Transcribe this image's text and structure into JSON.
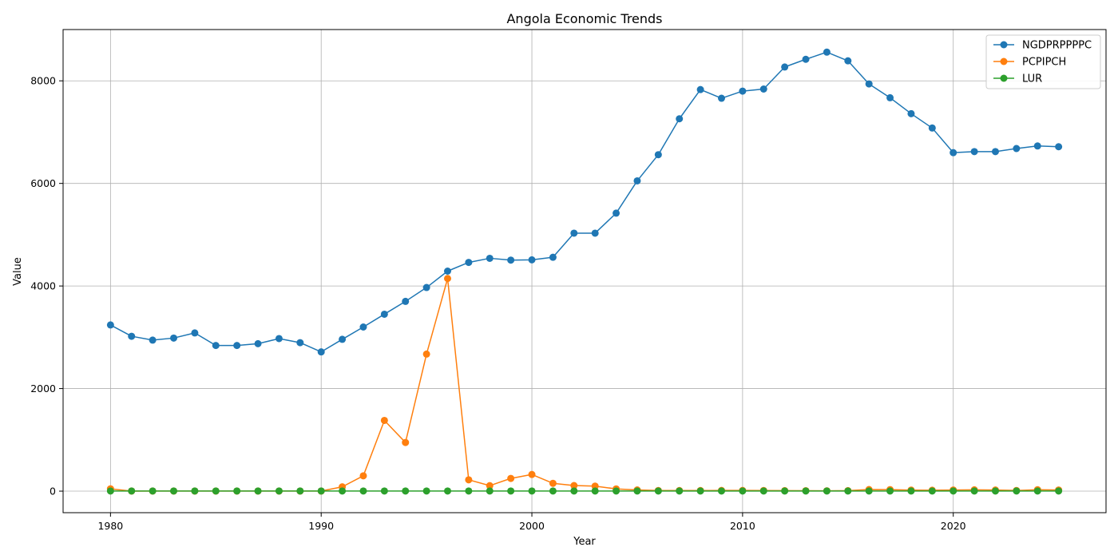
{
  "chart_data": {
    "type": "line",
    "title": "Angola Economic Trends",
    "xlabel": "Year",
    "ylabel": "Value",
    "xlim": [
      1977.75,
      2027.25
    ],
    "ylim": [
      -420,
      9000
    ],
    "xticks": [
      1980,
      1990,
      2000,
      2010,
      2020
    ],
    "yticks": [
      0,
      2000,
      4000,
      6000,
      8000
    ],
    "grid": true,
    "legend_position": "top-right",
    "x": [
      1980,
      1981,
      1982,
      1983,
      1984,
      1985,
      1986,
      1987,
      1988,
      1989,
      1990,
      1991,
      1992,
      1993,
      1994,
      1995,
      1996,
      1997,
      1998,
      1999,
      2000,
      2001,
      2002,
      2003,
      2004,
      2005,
      2006,
      2007,
      2008,
      2009,
      2010,
      2011,
      2012,
      2013,
      2014,
      2015,
      2016,
      2017,
      2018,
      2019,
      2020,
      2021,
      2022,
      2023,
      2024,
      2025
    ],
    "series": [
      {
        "name": "NGDPRPPPPC",
        "color": "#1f77b4",
        "values": [
          3240,
          3020,
          2945,
          2985,
          3085,
          2840,
          2840,
          2875,
          2975,
          2895,
          2715,
          2960,
          3200,
          3450,
          3700,
          3970,
          4290,
          4460,
          4540,
          4505,
          4510,
          4560,
          5030,
          5030,
          5420,
          6050,
          6560,
          7260,
          7830,
          7660,
          7800,
          7840,
          8270,
          8420,
          8560,
          8390,
          7940,
          7670,
          7360,
          7080,
          6600,
          6620,
          6620,
          6680,
          6730,
          6715
        ]
      },
      {
        "name": "PCPIPCH",
        "color": "#ff7f0e",
        "values": [
          46,
          1.4,
          1.8,
          1.8,
          1.8,
          1.8,
          1.8,
          1.8,
          1.8,
          1.8,
          1.8,
          84,
          299,
          1379,
          949,
          2672,
          4146,
          221,
          107,
          248,
          325,
          153,
          109,
          98,
          44,
          23,
          13,
          12,
          12,
          14,
          14,
          13,
          10,
          9,
          7,
          10,
          31,
          30,
          20,
          17,
          22,
          25,
          21,
          13,
          28,
          22
        ]
      },
      {
        "name": "LUR",
        "color": "#2ca02c",
        "values": [
          3,
          3,
          3,
          3,
          3,
          3,
          3,
          3,
          3,
          3,
          3,
          3,
          3,
          3,
          3,
          3,
          3,
          3,
          3,
          3,
          3,
          3,
          3,
          3,
          3,
          3,
          3,
          3,
          3,
          3,
          3,
          3,
          3,
          3,
          3,
          3,
          3,
          3,
          3,
          3,
          3,
          3,
          3,
          3,
          3,
          3
        ]
      }
    ]
  }
}
